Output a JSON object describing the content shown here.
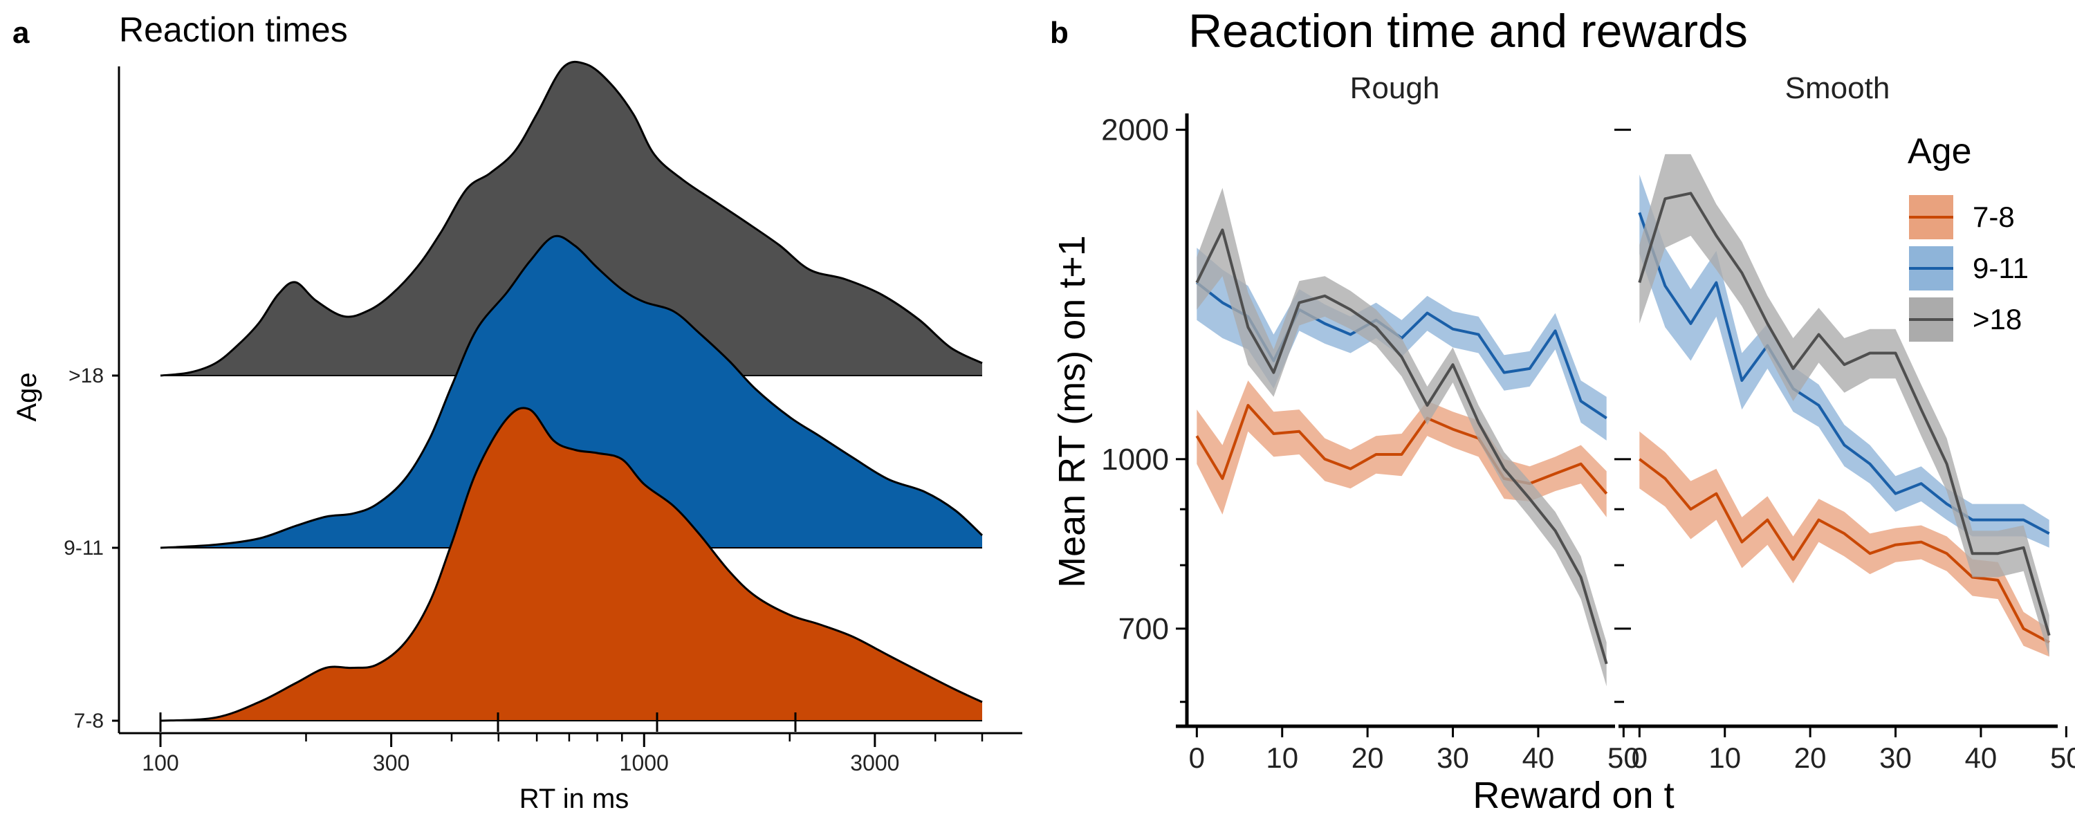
{
  "panel_a": {
    "letter": "a",
    "chart_data": {
      "type": "area",
      "subtype": "ridgeline-density",
      "title": "Reaction times",
      "xlabel": "RT in ms",
      "ylabel": "Age",
      "xscale": "log10",
      "xlim": [
        100,
        5000
      ],
      "xticks": [
        100,
        300,
        1000,
        3000
      ],
      "xtick_labels": [
        "100",
        "300",
        "1000",
        "3000"
      ],
      "legend": "none",
      "series": [
        {
          "name": "7-8",
          "color": "#C94805",
          "x": [
            100,
            130,
            160,
            190,
            220,
            250,
            280,
            320,
            360,
            400,
            450,
            520,
            580,
            650,
            720,
            800,
            900,
            1000,
            1150,
            1300,
            1500,
            1700,
            2000,
            2300,
            2700,
            3200,
            3800,
            4400,
            5000
          ],
          "density": [
            0,
            0.01,
            0.06,
            0.12,
            0.17,
            0.17,
            0.18,
            0.25,
            0.38,
            0.57,
            0.8,
            0.97,
            1.0,
            0.9,
            0.87,
            0.86,
            0.84,
            0.76,
            0.69,
            0.6,
            0.48,
            0.4,
            0.34,
            0.31,
            0.27,
            0.21,
            0.15,
            0.1,
            0.06
          ]
        },
        {
          "name": "9-11",
          "color": "#0A5FA6",
          "x": [
            100,
            130,
            160,
            190,
            220,
            250,
            280,
            320,
            360,
            400,
            450,
            520,
            580,
            650,
            720,
            800,
            900,
            1000,
            1150,
            1300,
            1500,
            1700,
            2000,
            2300,
            2700,
            3200,
            3800,
            4400,
            5000
          ],
          "density": [
            0,
            0.01,
            0.03,
            0.07,
            0.1,
            0.11,
            0.14,
            0.22,
            0.35,
            0.52,
            0.7,
            0.82,
            0.92,
            1.0,
            0.97,
            0.9,
            0.83,
            0.79,
            0.76,
            0.69,
            0.6,
            0.51,
            0.42,
            0.36,
            0.29,
            0.22,
            0.18,
            0.12,
            0.04
          ]
        },
        {
          "name": ">18",
          "color": "#505050",
          "x": [
            100,
            115,
            130,
            145,
            160,
            175,
            190,
            210,
            240,
            270,
            300,
            340,
            380,
            430,
            480,
            540,
            600,
            680,
            760,
            850,
            950,
            1050,
            1200,
            1400,
            1600,
            1900,
            2200,
            2600,
            3100,
            3700,
            4300,
            5000
          ],
          "density": [
            0,
            0.01,
            0.04,
            0.1,
            0.17,
            0.26,
            0.3,
            0.24,
            0.19,
            0.21,
            0.26,
            0.35,
            0.46,
            0.6,
            0.65,
            0.72,
            0.84,
            0.99,
            1.0,
            0.94,
            0.84,
            0.71,
            0.63,
            0.56,
            0.5,
            0.42,
            0.34,
            0.31,
            0.26,
            0.18,
            0.09,
            0.04
          ]
        }
      ]
    }
  },
  "panel_b": {
    "letter": "b",
    "chart_data": {
      "type": "line",
      "subtype": "line-with-ribbon, faceted",
      "title": "Reaction time and rewards",
      "xlabel": "Reward on t",
      "ylabel": "Mean RT (ms) on t+1",
      "yscale": "log10",
      "xlim": [
        -1,
        49
      ],
      "ylim": [
        570,
        2070
      ],
      "xticks": [
        0,
        10,
        20,
        30,
        40,
        50
      ],
      "xtick_labels": [
        "0",
        "10",
        "20",
        "30",
        "40",
        "50"
      ],
      "yticks": [
        700,
        1000,
        2000
      ],
      "ytick_labels": [
        "700",
        "1000",
        "2000"
      ],
      "legend_title": "Age",
      "legend": "top-right",
      "x": [
        0,
        3,
        6,
        9,
        12,
        15,
        18,
        21,
        24,
        27,
        30,
        33,
        36,
        39,
        42,
        45,
        48
      ],
      "facets": [
        {
          "name": "Rough",
          "series": [
            {
              "name": "7-8",
              "color": "#C94805",
              "fill": "#E9A27E",
              "values": [
                1050,
                960,
                1120,
                1055,
                1060,
                1000,
                980,
                1010,
                1010,
                1090,
                1065,
                1045,
                960,
                950,
                970,
                990,
                930
              ],
              "band": [
                60,
                70,
                60,
                50,
                50,
                45,
                40,
                40,
                45,
                40,
                40,
                40,
                40,
                35,
                35,
                40,
                45
              ]
            },
            {
              "name": "9-11",
              "color": "#1A5FA8",
              "fill": "#8EB4D9",
              "values": [
                1450,
                1390,
                1350,
                1230,
                1370,
                1330,
                1300,
                1340,
                1290,
                1360,
                1315,
                1300,
                1200,
                1210,
                1310,
                1130,
                1090
              ],
              "band": [
                110,
                100,
                90,
                70,
                60,
                55,
                50,
                50,
                50,
                50,
                50,
                50,
                45,
                45,
                50,
                50,
                50
              ]
            },
            {
              "name": ">18",
              "color": "#4F4F4F",
              "fill": "#ABABAB",
              "values": [
                1450,
                1620,
                1320,
                1200,
                1390,
                1410,
                1370,
                1320,
                1240,
                1120,
                1220,
                1080,
                980,
                920,
                860,
                780,
                650
              ],
              "band": [
                80,
                150,
                100,
                60,
                65,
                60,
                55,
                50,
                50,
                45,
                45,
                40,
                35,
                35,
                35,
                35,
                30
              ]
            }
          ]
        },
        {
          "name": "Smooth",
          "series": [
            {
              "name": "7-8",
              "color": "#C94805",
              "fill": "#E9A27E",
              "values": [
                1000,
                960,
                900,
                930,
                840,
                880,
                810,
                880,
                855,
                820,
                835,
                840,
                820,
                780,
                775,
                700,
                680
              ],
              "band": [
                60,
                55,
                55,
                50,
                45,
                45,
                40,
                40,
                40,
                35,
                30,
                30,
                30,
                30,
                30,
                25,
                20
              ]
            },
            {
              "name": "9-11",
              "color": "#1A5FA8",
              "fill": "#8EB4D9",
              "values": [
                1680,
                1440,
                1330,
                1450,
                1180,
                1270,
                1160,
                1120,
                1030,
                990,
                930,
                950,
                910,
                880,
                880,
                880,
                855
              ],
              "band": [
                140,
                120,
                100,
                100,
                70,
                60,
                55,
                50,
                45,
                40,
                35,
                35,
                30,
                30,
                30,
                30,
                25
              ]
            },
            {
              "name": ">18",
              "color": "#4F4F4F",
              "fill": "#ABABAB",
              "values": [
                1450,
                1730,
                1750,
                1600,
                1480,
                1330,
                1210,
                1300,
                1220,
                1250,
                1250,
                1110,
                990,
                820,
                820,
                830,
                690
              ],
              "band": [
                120,
                170,
                150,
                110,
                100,
                80,
                80,
                75,
                70,
                65,
                65,
                60,
                55,
                40,
                40,
                40,
                30
              ]
            }
          ]
        }
      ]
    }
  }
}
